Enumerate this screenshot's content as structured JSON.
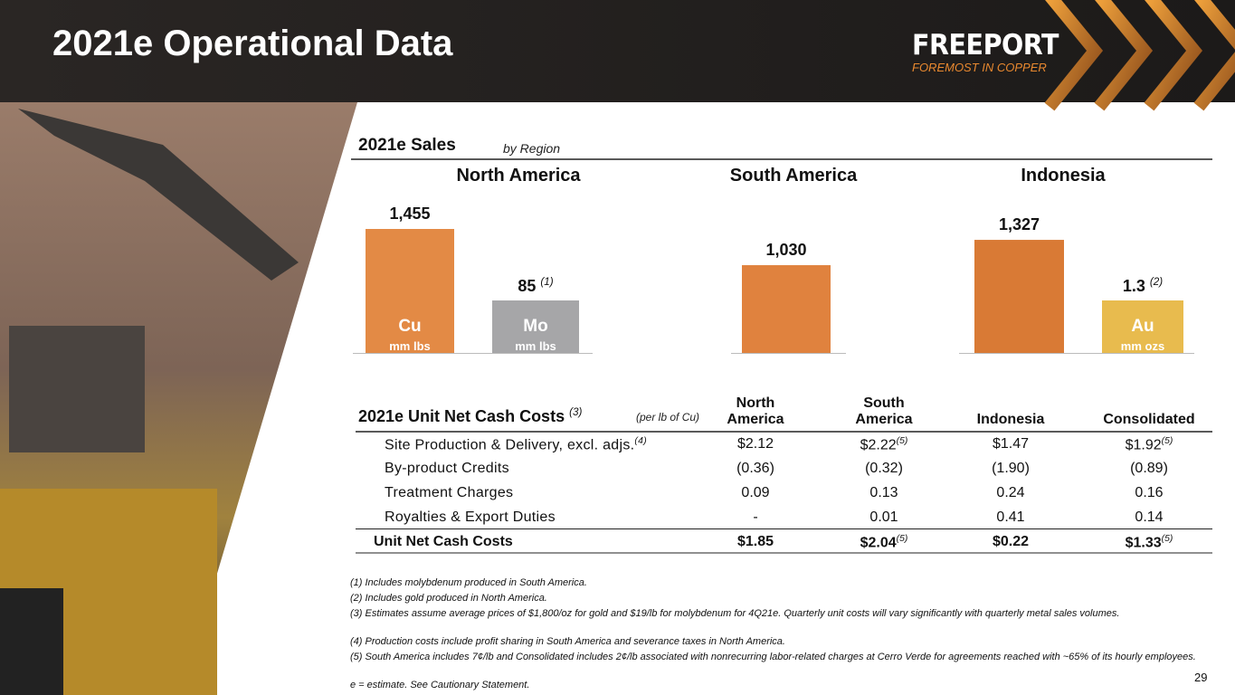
{
  "header": {
    "title": "2021e Operational Data",
    "logo": "FREEPORT",
    "tagline": "FOREMOST IN COPPER"
  },
  "chart_data": {
    "type": "bar",
    "title": "2021e Sales",
    "subtitle": "by Region",
    "groups": [
      {
        "name": "North America",
        "bars": [
          {
            "metal": "Cu",
            "unit": "mm lbs",
            "value": 1455,
            "value_label": "1,455",
            "color": "#e38a45"
          },
          {
            "metal": "Mo",
            "unit": "mm lbs",
            "value": 85,
            "value_label": "85",
            "note": "(1)",
            "color": "#a6a6a8"
          }
        ]
      },
      {
        "name": "South America",
        "bars": [
          {
            "value": 1030,
            "value_label": "1,030",
            "color": "#e0823e"
          }
        ]
      },
      {
        "name": "Indonesia",
        "bars": [
          {
            "value": 1327,
            "value_label": "1,327",
            "color": "#d97a35"
          },
          {
            "metal": "Au",
            "unit": "mm ozs",
            "value": 1.3,
            "note": "(2)",
            "color": "#e8bb4e"
          }
        ]
      }
    ]
  },
  "table": {
    "title": "2021e Unit Net Cash Costs",
    "title_note": "(3)",
    "unit": "(per lb of Cu)",
    "columns": [
      "North America",
      "South America",
      "Indonesia",
      "Consolidated"
    ],
    "rows": [
      {
        "label": "Site Production & Delivery, excl. adjs.",
        "note": "(4)",
        "cells": [
          "$2.12",
          {
            "text": "$2.22",
            "note": "(5)"
          },
          "$1.47",
          {
            "text": "$1.92",
            "note": "(5)"
          }
        ]
      },
      {
        "label": "By-product Credits",
        "cells": [
          "(0.36)",
          "(0.32)",
          "(1.90)",
          "(0.89)"
        ]
      },
      {
        "label": "Treatment Charges",
        "cells": [
          "0.09",
          "0.13",
          "0.24",
          "0.16"
        ]
      },
      {
        "label": "Royalties & Export Duties",
        "cells": [
          "-",
          "0.01",
          "0.41",
          "0.14"
        ]
      }
    ],
    "total": {
      "label": "Unit Net Cash Costs",
      "cells": [
        "$1.85",
        {
          "text": "$2.04",
          "note": "(5)"
        },
        "$0.22",
        {
          "text": "$1.33",
          "note": "(5)"
        }
      ]
    }
  },
  "footnotes": [
    "(1) Includes molybdenum produced in South America.",
    "(2) Includes gold produced in North America.",
    "(3) Estimates assume average prices of $1,800/oz for gold and $19/lb for molybdenum for 4Q21e. Quarterly unit costs will vary significantly with quarterly metal sales volumes.",
    "(4) Production costs include profit sharing in South America and severance taxes in North America.",
    "(5) South America includes 7¢/lb and Consolidated includes 2¢/lb associated with nonrecurring labor-related charges at Cerro Verde for agreements reached with ~65% of its hourly employees.",
    "e = estimate. See Cautionary Statement."
  ],
  "page_number": "29"
}
